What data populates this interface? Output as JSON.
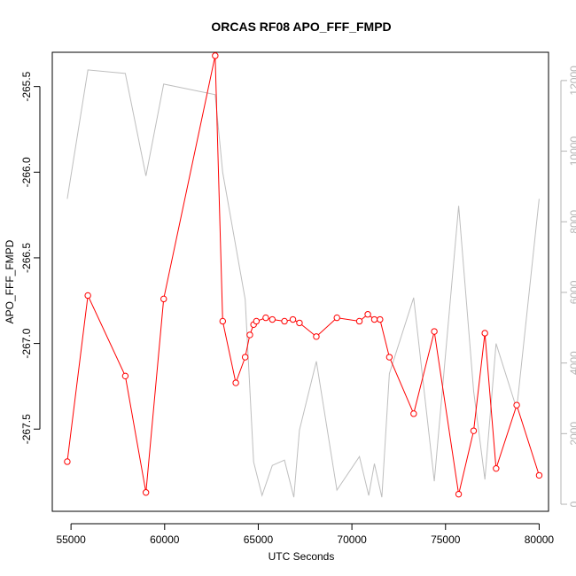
{
  "chart_data": {
    "type": "line",
    "title": "ORCAS RF08 APO_FFF_FMPD",
    "xlabel": "UTC Seconds",
    "ylabel": "APO_FFF_FMPD",
    "xlim": [
      54000,
      80500
    ],
    "ylim_left": [
      -267.98,
      -265.3
    ],
    "ylim_right": [
      -200,
      12800
    ],
    "x_ticks": [
      55000,
      60000,
      65000,
      70000,
      75000,
      80000
    ],
    "y_ticks_left": [
      -265.5,
      -266.0,
      -266.5,
      -267.0,
      -267.5
    ],
    "y_ticks_right": [
      0,
      2000,
      4000,
      6000,
      8000,
      10000,
      12000
    ],
    "grid": false,
    "legend": "none",
    "series": [
      {
        "axis": "left",
        "color": "#ff0000",
        "marker": "circle",
        "x": [
          54800,
          55900,
          57900,
          59000,
          59950,
          62700,
          63100,
          63800,
          64300,
          64550,
          64750,
          64900,
          65400,
          65750,
          66400,
          66850,
          67200,
          68100,
          69200,
          70400,
          70850,
          71200,
          71500,
          72000,
          73300,
          74400,
          75700,
          76500,
          77100,
          77700,
          78800,
          80000
        ],
        "y": [
          -267.69,
          -266.72,
          -267.19,
          -267.87,
          -266.74,
          -265.32,
          -266.87,
          -267.23,
          -267.08,
          -266.95,
          -266.89,
          -266.87,
          -266.85,
          -266.86,
          -266.87,
          -266.86,
          -266.88,
          -266.96,
          -266.85,
          -266.87,
          -266.83,
          -266.86,
          -266.86,
          -267.08,
          -267.41,
          -266.93,
          -267.88,
          -267.51,
          -266.94,
          -267.73,
          -267.36,
          -267.77
        ]
      },
      {
        "axis": "right",
        "color": "#bebebe",
        "marker": "none",
        "x": [
          54800,
          55900,
          57900,
          59000,
          59950,
          62700,
          63100,
          64300,
          64750,
          65200,
          65750,
          66400,
          66900,
          67200,
          68100,
          69200,
          70400,
          70900,
          71200,
          71600,
          72000,
          73300,
          74400,
          75700,
          76500,
          77100,
          77700,
          78800,
          80000
        ],
        "y": [
          8650,
          12300,
          12200,
          9300,
          11900,
          11600,
          9400,
          5800,
          1200,
          250,
          1100,
          1250,
          200,
          2100,
          4050,
          400,
          1350,
          250,
          1150,
          200,
          3700,
          5850,
          650,
          8450,
          3200,
          700,
          4550,
          2700,
          8650
        ]
      }
    ]
  }
}
